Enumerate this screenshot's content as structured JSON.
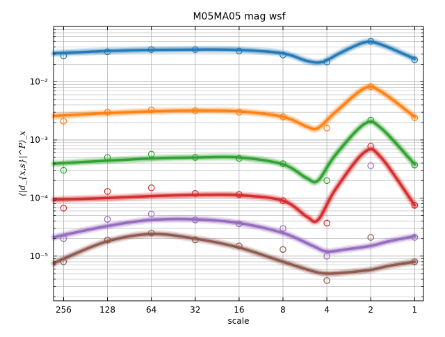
{
  "chart_data": {
    "type": "line",
    "title": "M05MA05 mag wsf",
    "xlabel": "scale",
    "ylabel": "⟨|d_{x,s}|^P⟩_x",
    "x_scale": "log2-reversed",
    "y_scale": "log",
    "x": [
      256,
      128,
      64,
      32,
      16,
      8,
      4,
      2,
      1
    ],
    "xlim": [
      300,
      0.87
    ],
    "ylim": [
      1.7e-06,
      0.09
    ],
    "x_tick_labels": [
      "256",
      "128",
      "64",
      "32",
      "16",
      "8",
      "4",
      "2",
      "1"
    ],
    "y_tick_labels": [
      "10⁻²",
      "10⁻³",
      "10⁻⁴",
      "10⁻⁵"
    ],
    "y_tick_values": [
      0.01,
      0.001,
      0.0001,
      1e-05
    ],
    "grid": true,
    "legend": "none",
    "series": [
      {
        "color": "#1f77b4",
        "points": [
          0.028,
          0.033,
          0.036,
          0.036,
          0.034,
          0.029,
          0.022,
          0.05,
          0.024
        ],
        "curve": [
          [
            300,
            0.031
          ],
          [
            256,
            0.0315
          ],
          [
            128,
            0.034
          ],
          [
            64,
            0.0355
          ],
          [
            32,
            0.036
          ],
          [
            16,
            0.0355
          ],
          [
            8,
            0.031
          ],
          [
            5.5,
            0.023
          ],
          [
            4.3,
            0.022
          ],
          [
            3.2,
            0.032
          ],
          [
            2.2,
            0.048
          ],
          [
            1.7,
            0.044
          ],
          [
            1,
            0.025
          ]
        ]
      },
      {
        "color": "#ff7f0e",
        "points": [
          0.0021,
          0.003,
          0.0033,
          0.0032,
          0.003,
          0.0025,
          0.0016,
          0.0083,
          0.0024
        ],
        "curve": [
          [
            300,
            0.0026
          ],
          [
            256,
            0.00265
          ],
          [
            128,
            0.0029
          ],
          [
            64,
            0.0031
          ],
          [
            32,
            0.0032
          ],
          [
            16,
            0.0031
          ],
          [
            8,
            0.0025
          ],
          [
            5.5,
            0.0017
          ],
          [
            4.6,
            0.0016
          ],
          [
            3.5,
            0.003
          ],
          [
            2.2,
            0.0078
          ],
          [
            1.7,
            0.0068
          ],
          [
            1,
            0.0025
          ]
        ]
      },
      {
        "color": "#2ca02c",
        "points": [
          0.0003,
          0.0005,
          0.00057,
          0.0005,
          0.00048,
          0.00039,
          0.0002,
          0.0022,
          0.00037
        ],
        "curve": [
          [
            300,
            0.00039
          ],
          [
            256,
            0.0004
          ],
          [
            128,
            0.00044
          ],
          [
            64,
            0.00048
          ],
          [
            32,
            0.0005
          ],
          [
            16,
            0.0005
          ],
          [
            8,
            0.00038
          ],
          [
            5.5,
            0.00022
          ],
          [
            4.6,
            0.0002
          ],
          [
            3.5,
            0.00055
          ],
          [
            2.2,
            0.0019
          ],
          [
            1.7,
            0.0016
          ],
          [
            1,
            0.00038
          ]
        ]
      },
      {
        "color": "#d62728",
        "points": [
          6.7e-05,
          0.00013,
          0.00015,
          0.00012,
          0.000115,
          9e-05,
          3.7e-05,
          0.00078,
          7.5e-05
        ],
        "curve": [
          [
            300,
            9.3e-05
          ],
          [
            256,
            9.5e-05
          ],
          [
            128,
            0.0001
          ],
          [
            64,
            0.000108
          ],
          [
            32,
            0.000113
          ],
          [
            16,
            0.000112
          ],
          [
            8,
            9e-05
          ],
          [
            5.5,
            4.8e-05
          ],
          [
            4.6,
            4.2e-05
          ],
          [
            3.5,
            0.00014
          ],
          [
            2.2,
            0.00062
          ],
          [
            1.7,
            0.0005
          ],
          [
            1,
            7.5e-05
          ]
        ]
      },
      {
        "color": "#9467bd",
        "points": [
          2e-05,
          4.3e-05,
          5.3e-05,
          4.2e-05,
          3.6e-05,
          3e-05,
          1e-05,
          0.00036,
          2.1e-05
        ],
        "curve": [
          [
            300,
            2.1e-05
          ],
          [
            256,
            2.3e-05
          ],
          [
            128,
            3.3e-05
          ],
          [
            64,
            4.2e-05
          ],
          [
            32,
            4.3e-05
          ],
          [
            16,
            3.7e-05
          ],
          [
            8,
            2.5e-05
          ],
          [
            5,
            1.5e-05
          ],
          [
            4,
            1.2e-05
          ],
          [
            3,
            1.3e-05
          ],
          [
            2,
            1.5e-05
          ],
          [
            1.5,
            1.8e-05
          ],
          [
            1,
            2.2e-05
          ]
        ]
      },
      {
        "color": "#8c564b",
        "points": [
          8e-06,
          1.9e-05,
          2.5e-05,
          1.9e-05,
          1.5e-05,
          1.3e-05,
          3.8e-06,
          2.1e-05,
          8e-06
        ],
        "curve": [
          [
            300,
            7.5e-06
          ],
          [
            256,
            9e-06
          ],
          [
            128,
            1.8e-05
          ],
          [
            64,
            2.4e-05
          ],
          [
            32,
            2e-05
          ],
          [
            16,
            1.4e-05
          ],
          [
            8,
            8e-06
          ],
          [
            5,
            5.5e-06
          ],
          [
            4,
            5e-06
          ],
          [
            3,
            5.2e-06
          ],
          [
            2,
            5.8e-06
          ],
          [
            1.5,
            6.8e-06
          ],
          [
            1,
            8e-06
          ]
        ]
      }
    ]
  }
}
